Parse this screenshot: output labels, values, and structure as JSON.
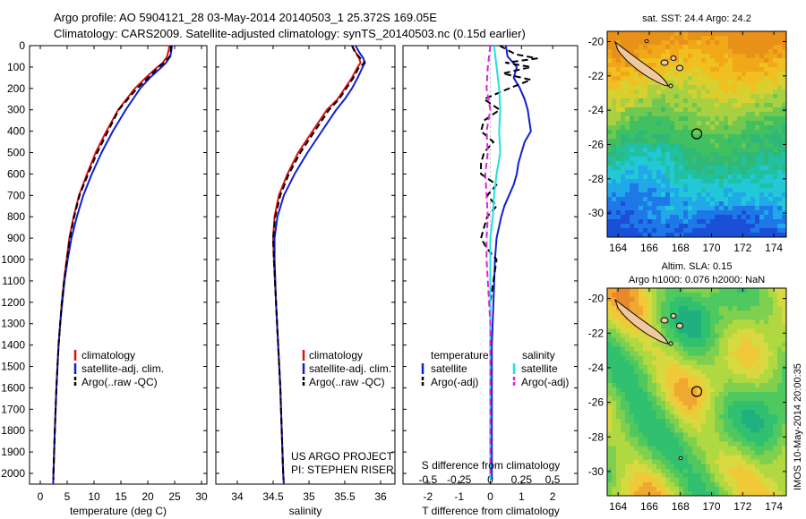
{
  "header": {
    "title_line1": "Argo profile: AO 5904121_28 03-May-2014 20140503_1 25.372S 169.05E",
    "title_line2": "Climatology: CARS2009. Satellite-adjusted climatology: synTS_20140503.nc (0.15d earlier)"
  },
  "credits": {
    "project": "US ARGO PROJECT",
    "pi": "PI: STEPHEN RISER",
    "stamp": "IMOS 10-May-2014 20:00:35"
  },
  "colors": {
    "climatology": "#e01010",
    "satellite": "#1020d0",
    "argo": "#000000",
    "sal_satellite": "#20e0e0",
    "sal_argo": "#e020e0"
  },
  "chart_data": [
    {
      "type": "line",
      "title": "",
      "xlabel": "temperature (deg C)",
      "ylabel": "",
      "xlim": [
        -2,
        31
      ],
      "ylim": [
        2050,
        0
      ],
      "xticks": [
        0,
        5,
        10,
        15,
        20,
        25,
        30
      ],
      "yticks": [
        0,
        100,
        200,
        300,
        400,
        500,
        600,
        700,
        800,
        900,
        1000,
        1100,
        1200,
        1300,
        1400,
        1500,
        1600,
        1700,
        1800,
        1900,
        2000
      ],
      "legend": [
        "climatology",
        "satellite-adj. clim.",
        "Argo(..raw -QC)"
      ],
      "series": [
        {
          "name": "climatology",
          "style": "solid",
          "depth": [
            0,
            20,
            50,
            80,
            100,
            150,
            200,
            300,
            400,
            500,
            600,
            700,
            800,
            900,
            1000,
            1100,
            1200,
            1300,
            1400,
            1600,
            1800,
            2000,
            2050
          ],
          "values": [
            24,
            23.9,
            23.6,
            22.8,
            21.8,
            19.6,
            17.6,
            14.5,
            12.3,
            10.3,
            8.7,
            7.2,
            6.2,
            5.4,
            4.9,
            4.4,
            4.0,
            3.7,
            3.4,
            3.0,
            2.7,
            2.45,
            2.4
          ]
        },
        {
          "name": "satellite-adj. clim.",
          "style": "solid",
          "depth": [
            0,
            20,
            50,
            80,
            100,
            150,
            200,
            300,
            400,
            500,
            600,
            700,
            800,
            900,
            1000,
            1100,
            1200,
            1300,
            1400,
            1600,
            1800,
            2000,
            2050
          ],
          "values": [
            24.5,
            24.4,
            24.2,
            23.4,
            22.6,
            20.4,
            18.6,
            15.9,
            13.5,
            11.4,
            9.6,
            8.0,
            6.8,
            5.8,
            5.1,
            4.5,
            4.1,
            3.7,
            3.4,
            3.0,
            2.7,
            2.45,
            2.4
          ]
        },
        {
          "name": "Argo(..raw -QC)",
          "style": "dashed",
          "depth": [
            0,
            20,
            50,
            80,
            100,
            150,
            200,
            300,
            400,
            500,
            600,
            700,
            800,
            900,
            1000,
            1100,
            1200,
            1300,
            1400,
            1600,
            1800,
            2000,
            2030
          ],
          "values": [
            24.3,
            24.3,
            24.1,
            23.1,
            22.0,
            20.1,
            18.0,
            14.6,
            12.6,
            10.6,
            8.9,
            7.3,
            6.3,
            5.5,
            4.95,
            4.45,
            4.0,
            3.7,
            3.4,
            3.0,
            2.7,
            2.45,
            2.43
          ]
        }
      ]
    },
    {
      "type": "line",
      "xlabel": "salinity",
      "xlim": [
        33.7,
        36.2
      ],
      "ylim": [
        2050,
        0
      ],
      "xticks": [
        34,
        34.5,
        35,
        35.5,
        36
      ],
      "legend": [
        "climatology",
        "satellite-adj. clim.",
        "Argo(..raw -QC)"
      ],
      "series": [
        {
          "name": "climatology",
          "style": "solid",
          "depth": [
            0,
            30,
            60,
            80,
            100,
            150,
            200,
            250,
            300,
            400,
            500,
            600,
            700,
            800,
            900,
            1000,
            1200,
            1400,
            1600,
            1800,
            2000,
            2050
          ],
          "values": [
            35.6,
            35.65,
            35.7,
            35.72,
            35.68,
            35.6,
            35.5,
            35.4,
            35.25,
            35.05,
            34.85,
            34.7,
            34.58,
            34.52,
            34.5,
            34.51,
            34.54,
            34.57,
            34.6,
            34.62,
            34.64,
            34.65
          ]
        },
        {
          "name": "satellite-adj. clim.",
          "style": "solid",
          "depth": [
            0,
            30,
            60,
            80,
            100,
            150,
            200,
            250,
            300,
            400,
            500,
            600,
            700,
            800,
            900,
            1000,
            1200,
            1400,
            1600,
            1800,
            2000,
            2050
          ],
          "values": [
            35.65,
            35.7,
            35.76,
            35.78,
            35.75,
            35.68,
            35.6,
            35.5,
            35.38,
            35.18,
            34.98,
            34.8,
            34.65,
            34.56,
            34.52,
            34.52,
            34.54,
            34.57,
            34.6,
            34.62,
            34.64,
            34.65
          ]
        },
        {
          "name": "Argo(..raw -QC)",
          "style": "dashed",
          "depth": [
            0,
            30,
            60,
            80,
            100,
            150,
            200,
            250,
            300,
            400,
            500,
            600,
            700,
            800,
            900,
            1000,
            1200,
            1400,
            1600,
            1800,
            2000,
            2030
          ],
          "values": [
            35.6,
            35.64,
            35.72,
            35.78,
            35.7,
            35.62,
            35.52,
            35.42,
            35.28,
            35.08,
            34.88,
            34.72,
            34.6,
            34.53,
            34.5,
            34.51,
            34.54,
            34.57,
            34.6,
            34.62,
            34.64,
            34.645
          ]
        }
      ]
    },
    {
      "type": "line",
      "xlabel": "T difference from climatology",
      "xlabel_top": "S difference from climatology",
      "xlim": [
        -2.8,
        2.8
      ],
      "ylim": [
        2050,
        0
      ],
      "xticks": [
        -2,
        -1,
        0,
        1,
        2
      ],
      "xticks_S": [
        -0.5,
        -0.25,
        0,
        0.25,
        0.5
      ],
      "legend_titles": [
        "temperature",
        "salinity"
      ],
      "legend": [
        "satellite",
        "Argo(-adj)",
        "satellite",
        "Argo(-adj)"
      ],
      "series": [
        {
          "name": "T satellite",
          "style": "solid",
          "depth": [
            0,
            50,
            100,
            150,
            200,
            250,
            300,
            350,
            400,
            450,
            500,
            550,
            600,
            650,
            700,
            750,
            800,
            900,
            1000,
            1200,
            1400,
            1600,
            1800,
            2000,
            2030
          ],
          "values": [
            0.5,
            0.55,
            0.85,
            0.75,
            0.95,
            1.1,
            1.2,
            1.25,
            1.3,
            1.1,
            1.0,
            0.9,
            0.85,
            0.75,
            0.6,
            0.45,
            0.35,
            0.2,
            0.15,
            0.1,
            0.05,
            0.05,
            0.05,
            0.05,
            0.05
          ]
        },
        {
          "name": "T Argo(-adj)",
          "style": "dashed",
          "depth": [
            0,
            40,
            60,
            80,
            100,
            130,
            160,
            200,
            250,
            300,
            350,
            400,
            450,
            500,
            550,
            600,
            650,
            700,
            750,
            800,
            850,
            900,
            950,
            1000,
            1100,
            1200,
            1400,
            1600,
            1800,
            2000
          ],
          "values": [
            0.3,
            0.8,
            1.5,
            0.5,
            1.3,
            0.4,
            1.3,
            0.6,
            -0.2,
            0.3,
            -0.2,
            -0.3,
            0.1,
            -0.2,
            -0.3,
            -0.3,
            0.2,
            -0.1,
            0.2,
            -0.1,
            -0.2,
            -0.3,
            -0.1,
            0.2,
            0.1,
            0.0,
            0.0,
            0.0,
            0.0,
            0.0
          ]
        },
        {
          "name": "S satellite",
          "style": "solid",
          "depth": [
            0,
            100,
            200,
            300,
            400,
            500,
            600,
            700,
            800,
            900,
            1000,
            1200,
            1400,
            1600,
            1800,
            2000,
            2030
          ],
          "values": [
            0.03,
            0.05,
            0.07,
            0.08,
            0.07,
            0.08,
            0.05,
            0.03,
            0.02,
            0.0,
            0.0,
            0.0,
            0.0,
            0.0,
            0.0,
            0.0,
            0.0
          ]
        },
        {
          "name": "S Argo(-adj)",
          "style": "dashed",
          "depth": [
            0,
            100,
            200,
            300,
            400,
            500,
            600,
            700,
            800,
            900,
            1000,
            1100,
            1200,
            1300,
            1400,
            1600,
            1800,
            2000
          ],
          "values": [
            0.0,
            -0.02,
            -0.03,
            0.0,
            -0.03,
            -0.02,
            -0.04,
            -0.03,
            -0.02,
            -0.03,
            -0.03,
            -0.02,
            -0.01,
            0.0,
            0.0,
            0.0,
            0.0,
            0.0
          ]
        }
      ]
    },
    {
      "type": "heatmap",
      "title": "sat. SST: 24.4 Argo: 24.2",
      "xlim": [
        163.3,
        174.8
      ],
      "ylim": [
        -31.4,
        -19.4
      ],
      "xticks": [
        164,
        166,
        168,
        170,
        172,
        174
      ],
      "yticks": [
        -20,
        -22,
        -24,
        -26,
        -28,
        -30
      ],
      "argo_position": [
        169.05,
        -25.372
      ]
    },
    {
      "type": "heatmap",
      "title_line1": "Altim. SLA: 0.15",
      "title_line2": "Argo h1000: 0.076 h2000: NaN",
      "xlim": [
        163.3,
        174.8
      ],
      "ylim": [
        -31.4,
        -19.4
      ],
      "xticks": [
        164,
        166,
        168,
        170,
        172,
        174
      ],
      "yticks": [
        -20,
        -22,
        -24,
        -26,
        -28,
        -30
      ],
      "argo_position": [
        169.05,
        -25.372
      ]
    }
  ]
}
